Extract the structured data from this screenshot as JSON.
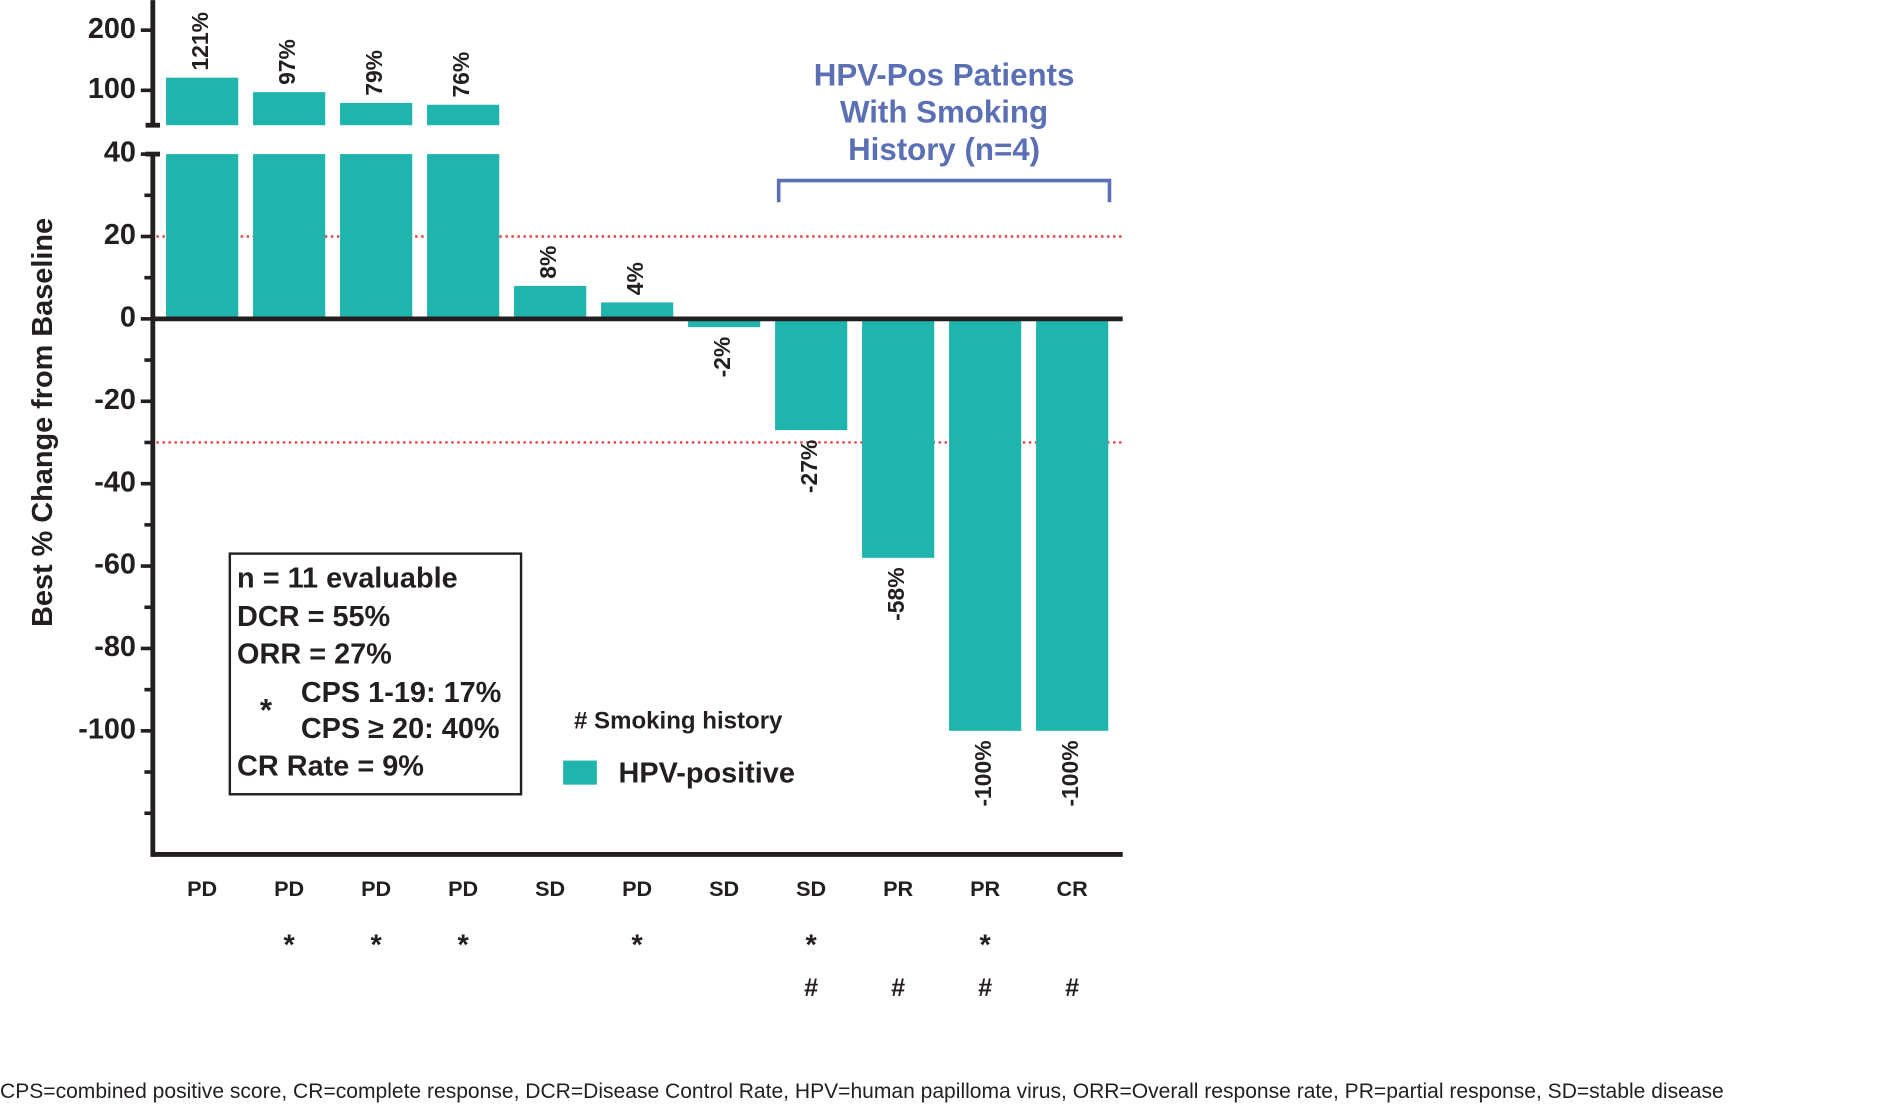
{
  "chart_data": {
    "type": "bar",
    "y_label": "Best % Change from Baseline",
    "categories": [
      "PD",
      "PD",
      "PD",
      "PD",
      "SD",
      "PD",
      "SD",
      "SD",
      "PR",
      "PR",
      "CR"
    ],
    "series": [
      {
        "name": "HPV-positive",
        "color": "#1fb5ad",
        "values": [
          121,
          97,
          79,
          76,
          8,
          4,
          -2,
          -27,
          -58,
          -100,
          -100
        ],
        "value_labels": [
          "121%",
          "97%",
          "79%",
          "76%",
          "8%",
          "4%",
          "-2%",
          "-27%",
          "-58%",
          "-100%",
          "-100%"
        ]
      }
    ],
    "ylim": [
      -130,
      40
    ],
    "yticks": [
      -100,
      -80,
      -60,
      -40,
      -20,
      0,
      20,
      40
    ],
    "minor_yticks": [
      -120,
      -110,
      -90,
      -70,
      -50,
      -30,
      -10,
      10,
      30
    ],
    "upper_ylim": [
      42,
      250
    ],
    "upper_yticks": [
      100,
      200
    ],
    "reference_lines": [
      20,
      -30
    ],
    "reference_color": "#e04040",
    "cps_markers": [
      null,
      "*",
      "*",
      "*",
      null,
      "*",
      null,
      "*",
      null,
      "*",
      null
    ],
    "smoking_markers": [
      null,
      null,
      null,
      null,
      null,
      null,
      null,
      "#",
      "#",
      "#",
      "#"
    ],
    "bracket": {
      "lines": [
        "HPV-Pos Patients",
        "With Smoking",
        "History (n=4)"
      ],
      "color": "#5b6fb5",
      "from": 7,
      "to": 10
    },
    "stats_box": {
      "lines": [
        "n = 11 evaluable",
        "DCR = 55%",
        "ORR = 27%"
      ],
      "marker": "*",
      "sub_lines": [
        "CPS 1-19: 17%",
        "CPS ≥ 20: 40%"
      ],
      "last_line": "CR Rate = 9%"
    },
    "legend_note": "# Smoking history",
    "footnote": "CPS=combined positive score, CR=complete response, DCR=Disease Control Rate, HPV=human papilloma virus, ORR=Overall response rate, PR=partial response, SD=stable disease"
  }
}
